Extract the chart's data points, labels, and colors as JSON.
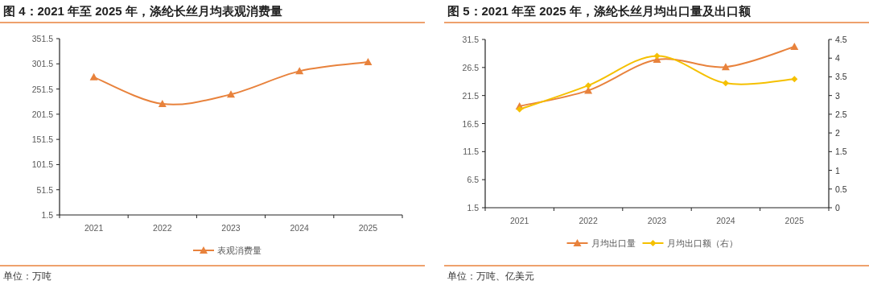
{
  "chart_data": [
    {
      "type": "line",
      "title": "图 4：2021 年至 2025 年，涤纶长丝月均表观消费量",
      "categories": [
        "2021",
        "2022",
        "2023",
        "2024",
        "2025"
      ],
      "series": [
        {
          "name": "表观消费量",
          "color": "#e8823c",
          "marker": "triangle",
          "values": [
            275,
            222,
            241,
            287,
            305
          ]
        }
      ],
      "ylim": [
        1.5,
        351.5
      ],
      "yticks": [
        1.5,
        51.5,
        101.5,
        151.5,
        201.5,
        251.5,
        301.5,
        351.5
      ],
      "grid": false,
      "legend": "bottom",
      "annotations": [
        "单位：万吨"
      ]
    },
    {
      "type": "line",
      "title": "图 5：2021 年至 2025 年，涤纶长丝月均出口量及出口额",
      "categories": [
        "2021",
        "2022",
        "2023",
        "2024",
        "2025"
      ],
      "series": [
        {
          "name": "月均出口量",
          "color": "#e8823c",
          "marker": "triangle",
          "values": [
            19.6,
            22.4,
            27.9,
            26.6,
            30.2
          ]
        },
        {
          "name": "月均出口额（右）",
          "color": "#f5c000",
          "marker": "diamond",
          "axis": "y2",
          "values": [
            2.63,
            3.27,
            4.06,
            3.33,
            3.44
          ]
        }
      ],
      "ylim": [
        1.5,
        31.5
      ],
      "yticks": [
        1.5,
        6.5,
        11.5,
        16.5,
        21.5,
        26.5,
        31.5
      ],
      "y2lim": [
        0,
        4.5
      ],
      "y2ticks": [
        0,
        0.5,
        1,
        1.5,
        2,
        2.5,
        3,
        3.5,
        4,
        4.5
      ],
      "grid": false,
      "legend": "bottom",
      "annotations": [
        "单位：万吨、亿美元"
      ]
    }
  ]
}
